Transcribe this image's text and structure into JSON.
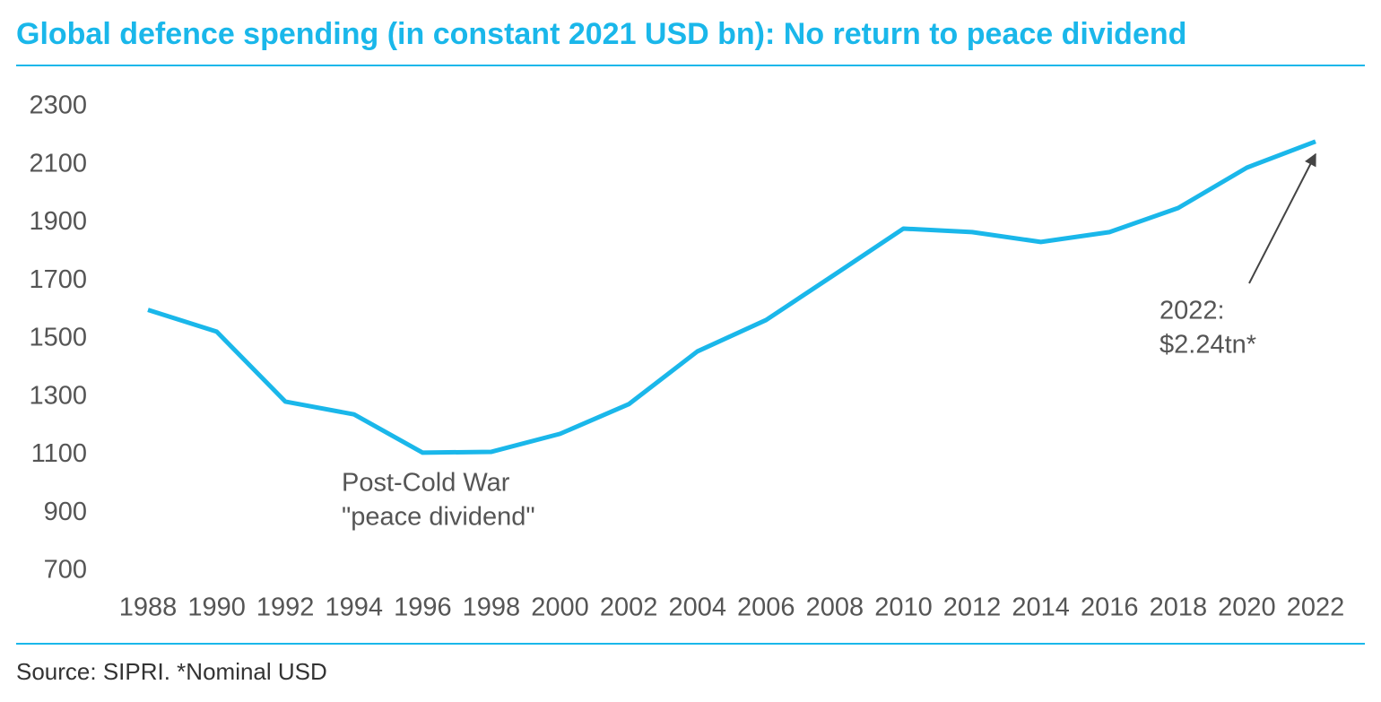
{
  "chart_data": {
    "type": "line",
    "title": "Global defence spending (in constant 2021 USD bn): No return to peace dividend",
    "x": [
      1988,
      1990,
      1992,
      1994,
      1996,
      1998,
      2000,
      2002,
      2004,
      2006,
      2008,
      2010,
      2012,
      2014,
      2016,
      2018,
      2020,
      2022
    ],
    "series": [
      {
        "name": "Global defence spending",
        "color": "#1ab7ea",
        "values": [
          1600,
          1525,
          1284,
          1240,
          1108,
          1111,
          1173,
          1275,
          1457,
          1565,
          1722,
          1880,
          1868,
          1834,
          1868,
          1951,
          2090,
          2180
        ]
      }
    ],
    "xlim": [
      1988,
      2022
    ],
    "xticks": [
      1988,
      1990,
      1992,
      1994,
      1996,
      1998,
      2000,
      2002,
      2004,
      2006,
      2008,
      2010,
      2012,
      2014,
      2016,
      2018,
      2020,
      2022
    ],
    "ylim": [
      700,
      2300
    ],
    "yticks": [
      700,
      900,
      1100,
      1300,
      1500,
      1700,
      1900,
      2100,
      2300
    ],
    "grid": false,
    "annotations": [
      {
        "lines": [
          "Post-Cold War",
          "\"peace dividend\""
        ]
      },
      {
        "lines": [
          "2022:",
          "$2.24tn*"
        ]
      }
    ],
    "source": "Source: SIPRI. *Nominal USD"
  }
}
